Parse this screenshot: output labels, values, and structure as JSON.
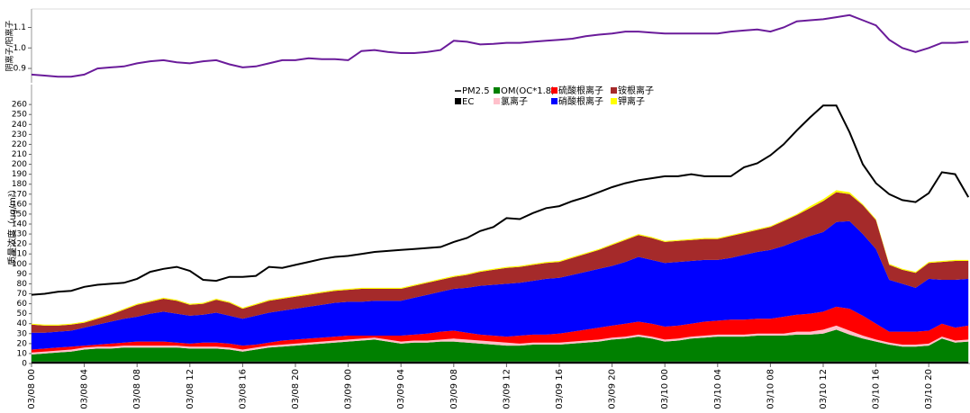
{
  "chart_data": [
    {
      "type": "line",
      "ylabel": "阴离子/阳离子",
      "ylim": [
        0.83,
        1.19
      ],
      "yticks": [
        0.9,
        {
          "value": 1,
          "label": "1.0"
        },
        1.1
      ],
      "series": [
        {
          "name": "阴离子/阳离子",
          "color": "#6a1b9a",
          "values": [
            0.87,
            0.865,
            0.86,
            0.86,
            0.87,
            0.9,
            0.905,
            0.91,
            0.925,
            0.935,
            0.94,
            0.93,
            0.925,
            0.935,
            0.94,
            0.92,
            0.905,
            0.91,
            0.925,
            0.94,
            0.94,
            0.95,
            0.945,
            0.945,
            0.94,
            0.985,
            0.99,
            0.98,
            0.975,
            0.975,
            0.98,
            0.99,
            1.035,
            1.03,
            1.017,
            1.02,
            1.025,
            1.025,
            1.03,
            1.035,
            1.04,
            1.045,
            1.057,
            1.065,
            1.07,
            1.08,
            1.08,
            1.075,
            1.07,
            1.07,
            1.07,
            1.07,
            1.07,
            1.08,
            1.085,
            1.09,
            1.08,
            1.1,
            1.13,
            1.135,
            1.14,
            1.15,
            1.16,
            1.135,
            1.11,
            1.04,
            1.0,
            0.98,
            1.0,
            1.025,
            1.025,
            1.03
          ]
        }
      ]
    },
    {
      "type": "area",
      "stacked": true,
      "ylabel": "质量浓度（ug/m³）",
      "categories": [
        "03/08 00",
        null,
        null,
        null,
        "03/08 04",
        null,
        null,
        null,
        "03/08 08",
        null,
        null,
        null,
        "03/08 12",
        null,
        null,
        null,
        "03/08 16",
        null,
        null,
        null,
        "03/08 20",
        null,
        null,
        null,
        "03/09 00",
        null,
        null,
        null,
        "03/09 04",
        null,
        null,
        null,
        "03/09 08",
        null,
        null,
        null,
        "03/09 12",
        null,
        null,
        null,
        "03/09 16",
        null,
        null,
        null,
        "03/09 20",
        null,
        null,
        null,
        "03/10 00",
        null,
        null,
        null,
        "03/10 04",
        null,
        null,
        null,
        "03/10 08",
        null,
        null,
        null,
        "03/10 12",
        null,
        null,
        null,
        "03/10 16",
        null,
        null,
        null,
        "03/10 20",
        null,
        null,
        null
      ],
      "ylim": [
        0,
        280
      ],
      "yticks": [
        0,
        10,
        20,
        30,
        40,
        50,
        60,
        70,
        80,
        90,
        100,
        110,
        120,
        130,
        140,
        150,
        160,
        170,
        180,
        190,
        200,
        210,
        220,
        230,
        240,
        250,
        260
      ],
      "series": [
        {
          "name": "PM2.5",
          "type": "line",
          "color": "#000000",
          "values": [
            69,
            70,
            72,
            73,
            77,
            79,
            80,
            81,
            85,
            92,
            95,
            97,
            93,
            84,
            83,
            87,
            87,
            88,
            97,
            96,
            99,
            102,
            105,
            107,
            108,
            110,
            112,
            113,
            114,
            115,
            116,
            117,
            122,
            126,
            133,
            137,
            146,
            145,
            151,
            156,
            158,
            163,
            167,
            172,
            177,
            181,
            184,
            186,
            188,
            188,
            190,
            188,
            188,
            188,
            197,
            201,
            209,
            220,
            234,
            247,
            259,
            259,
            232,
            200,
            181,
            170,
            164,
            162,
            171,
            192,
            190,
            167
          ]
        },
        {
          "name": "EC",
          "color": "#000000",
          "values": [
            2,
            2,
            2,
            2,
            2,
            2,
            2,
            2,
            2,
            2,
            2,
            2,
            2,
            2,
            2,
            2,
            2,
            2,
            2,
            2,
            2,
            2,
            2,
            2,
            2,
            2,
            2,
            2,
            2,
            2,
            2,
            2,
            2,
            2,
            2,
            2,
            2,
            2,
            2,
            2,
            2,
            2,
            2,
            2,
            2,
            2,
            2,
            2,
            2,
            2,
            2,
            2,
            2,
            2,
            2,
            2,
            2,
            2,
            2,
            2,
            2,
            2,
            2,
            2,
            2,
            2,
            2,
            2,
            2,
            2,
            2,
            2
          ]
        },
        {
          "name": "OM(OC*1.8)",
          "color": "#008000",
          "values": [
            7,
            8,
            9,
            10,
            12,
            13,
            13,
            14,
            14,
            14,
            14,
            14,
            13,
            13,
            13,
            12,
            10,
            12,
            14,
            15,
            16,
            17,
            18,
            19,
            20,
            21,
            22,
            20,
            18,
            19,
            19,
            20,
            20,
            19,
            18,
            17,
            16,
            16,
            17,
            17,
            17,
            18,
            19,
            20,
            22,
            23,
            25,
            23,
            20,
            21,
            23,
            24,
            25,
            25,
            25,
            26,
            26,
            26,
            27,
            27,
            28,
            32,
            27,
            23,
            20,
            17,
            15,
            15,
            16,
            23,
            19,
            20
          ]
        },
        {
          "name": "氯离子",
          "color": "#ffc0cb",
          "values": [
            2,
            2,
            2,
            2,
            2,
            2,
            2,
            2,
            2,
            2,
            2,
            2,
            2,
            2,
            2,
            2,
            2,
            2,
            2,
            2,
            2,
            2,
            2,
            2,
            2,
            2,
            2,
            2,
            2,
            2,
            2,
            2,
            3,
            3,
            3,
            3,
            3,
            2,
            2,
            2,
            2,
            2,
            2,
            2,
            2,
            2,
            2,
            2,
            2,
            2,
            2,
            2,
            2,
            2,
            2,
            2,
            2,
            2,
            3,
            3,
            4,
            4,
            4,
            3,
            2,
            2,
            2,
            2,
            2,
            2,
            2,
            2
          ]
        },
        {
          "name": "硫酸根离子",
          "color": "#ff0000",
          "values": [
            3,
            3,
            3,
            3,
            2,
            2,
            3,
            3,
            4,
            4,
            4,
            3,
            3,
            4,
            4,
            4,
            4,
            3,
            3,
            4,
            4,
            4,
            4,
            4,
            4,
            3,
            2,
            4,
            6,
            6,
            7,
            8,
            8,
            7,
            6,
            6,
            6,
            8,
            8,
            8,
            9,
            10,
            11,
            12,
            12,
            13,
            13,
            13,
            13,
            13,
            13,
            14,
            14,
            15,
            15,
            15,
            15,
            17,
            17,
            18,
            18,
            19,
            22,
            20,
            16,
            11,
            13,
            13,
            13,
            13,
            13,
            14
          ]
        },
        {
          "name": "硝酸根离子",
          "color": "#0000ff",
          "values": [
            17,
            16,
            16,
            16,
            18,
            20,
            22,
            24,
            25,
            28,
            30,
            29,
            28,
            28,
            30,
            28,
            27,
            29,
            30,
            30,
            31,
            32,
            33,
            34,
            34,
            34,
            35,
            35,
            35,
            37,
            39,
            40,
            42,
            45,
            49,
            51,
            53,
            53,
            54,
            56,
            56,
            57,
            58,
            59,
            60,
            62,
            65,
            64,
            64,
            64,
            63,
            62,
            61,
            62,
            65,
            67,
            69,
            71,
            74,
            78,
            80,
            85,
            88,
            82,
            75,
            52,
            48,
            44,
            52,
            44,
            48,
            47
          ]
        },
        {
          "name": "铵根离子",
          "color": "#a52a2a",
          "values": [
            8,
            7,
            6,
            6,
            5,
            6,
            7,
            9,
            12,
            12,
            13,
            13,
            11,
            11,
            13,
            13,
            10,
            11,
            12,
            12,
            12,
            12,
            12,
            12,
            12,
            13,
            12,
            12,
            12,
            12,
            12,
            12,
            12,
            13,
            14,
            15,
            16,
            16,
            16,
            16,
            16,
            17,
            18,
            19,
            21,
            22,
            22,
            22,
            21,
            21,
            21,
            21,
            21,
            22,
            22,
            22,
            23,
            25,
            26,
            28,
            31,
            30,
            27,
            29,
            29,
            15,
            14,
            15,
            16,
            18,
            19,
            18
          ]
        },
        {
          "name": "钾离子",
          "color": "#ffff00",
          "values": [
            1,
            1,
            1,
            1,
            1,
            1,
            1,
            1,
            1,
            1,
            1,
            1,
            1,
            1,
            1,
            1,
            1,
            1,
            1,
            1,
            1,
            1,
            1,
            1,
            1,
            1,
            1,
            1,
            1,
            1,
            1,
            1,
            1,
            1,
            1,
            1,
            1,
            1,
            1,
            1,
            1,
            1,
            1,
            1,
            1,
            1,
            1,
            1,
            1,
            1,
            1,
            1,
            1,
            1,
            1,
            1,
            1,
            1,
            1,
            2,
            2,
            2,
            2,
            1,
            1,
            1,
            1,
            1,
            1,
            1,
            1,
            1
          ]
        }
      ]
    }
  ]
}
